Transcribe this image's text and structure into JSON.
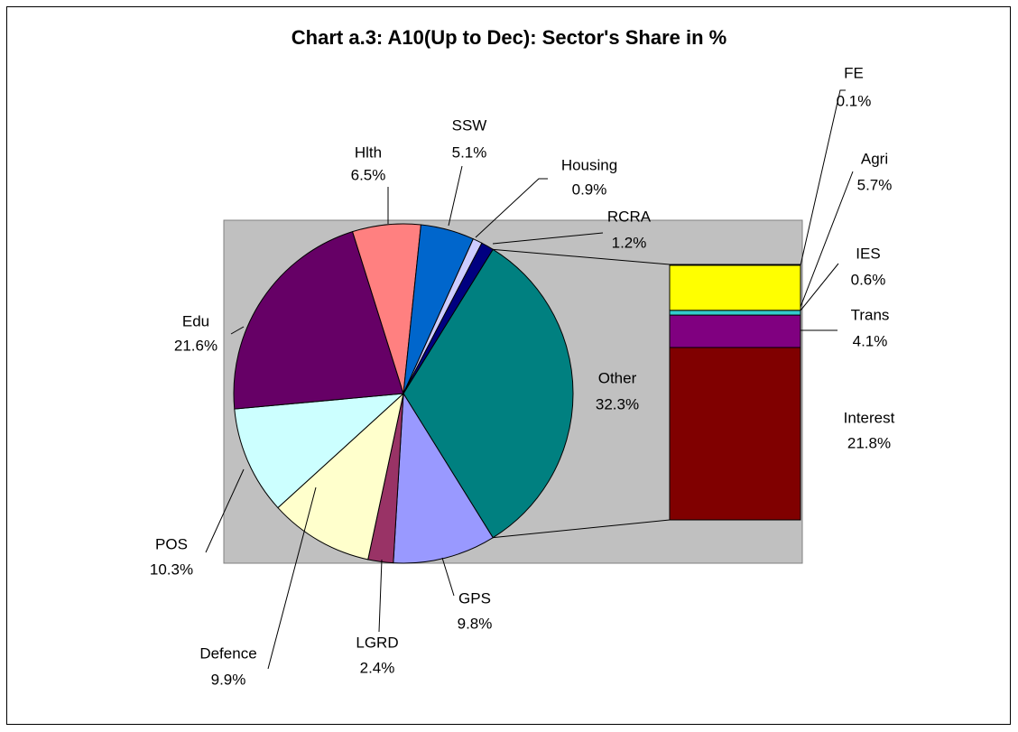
{
  "chart_data": {
    "type": "pie",
    "title": "Chart a.3: A10(Up to Dec): Sector's Share in %",
    "categories": [
      "Other",
      "GPS",
      "LGRD",
      "Defence",
      "POS",
      "Edu",
      "Hlth",
      "SSW",
      "Housing",
      "RCRA"
    ],
    "values": [
      32.3,
      9.8,
      2.4,
      9.9,
      10.3,
      21.6,
      6.5,
      5.1,
      0.9,
      1.2
    ],
    "value_labels": [
      "32.3%",
      "9.8%",
      "2.4%",
      "9.9%",
      "10.3%",
      "21.6%",
      "6.5%",
      "5.1%",
      "0.9%",
      "1.2%"
    ],
    "colors": [
      "#008080",
      "#9999ff",
      "#993366",
      "#ffffcc",
      "#ccffff",
      "#660066",
      "#ff8080",
      "#0066cc",
      "#ccccff",
      "#000080"
    ],
    "bar": {
      "categories": [
        "Interest",
        "Trans",
        "IES",
        "Agri",
        "FE"
      ],
      "values": [
        21.8,
        4.1,
        0.6,
        5.7,
        0.1
      ],
      "value_labels": [
        "21.8%",
        "4.1%",
        "0.6%",
        "5.7%",
        "0.1%"
      ],
      "colors": [
        "#800000",
        "#800080",
        "#33cccc",
        "#ffff00",
        "#3366ff"
      ]
    }
  }
}
